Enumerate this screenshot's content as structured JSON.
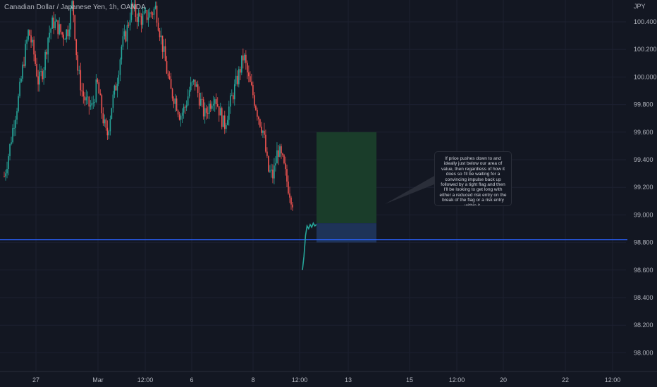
{
  "header": {
    "title": "Canadian Dollar / Japanese Yen, 1h, OANDA"
  },
  "y_axis_unit": "JPY",
  "annotation": {
    "text": "If price pushes down to and ideally just below our area of value, then regardless of how it does so I'll be waiting for a convincing impulse back up followed by a tight flag and then I'll be looking to get long with either a reduced risk entry on the break of the flag or a risk entry within it."
  },
  "colors": {
    "background": "#131722",
    "up": "#26a69a",
    "down": "#ef5350",
    "level_line": "#2962ff",
    "target_zone": "#1a3d2a",
    "stop_zone": "#1e3358"
  },
  "chart_data": {
    "type": "candlestick",
    "y_ticks": [
      "100.400",
      "100.200",
      "100.000",
      "99.800",
      "99.600",
      "99.400",
      "99.200",
      "99.000",
      "98.800",
      "98.600",
      "98.400",
      "98.200",
      "98.000"
    ],
    "ylim": [
      97.9,
      100.55
    ],
    "x_ticks": [
      "27",
      "Mar",
      "12:00",
      "6",
      "8",
      "12:00",
      "13",
      "15",
      "12:00",
      "20",
      "22",
      "12:00"
    ],
    "key_level": 98.82,
    "position": {
      "type": "long",
      "entry": 98.94,
      "stop_loss": 98.8,
      "target": 99.6
    },
    "price_path": [
      99.28,
      99.46,
      99.68,
      99.86,
      100.12,
      100.34,
      100.18,
      99.96,
      100.06,
      100.3,
      100.4,
      100.36,
      100.3,
      100.34,
      100.55,
      100.06,
      99.88,
      99.8,
      99.78,
      99.96,
      99.74,
      99.56,
      99.8,
      99.96,
      100.22,
      100.32,
      100.5,
      100.45,
      100.42,
      100.44,
      100.46,
      100.5,
      100.3,
      100.1,
      99.9,
      99.84,
      99.72,
      99.78,
      99.92,
      99.96,
      99.84,
      99.72,
      99.8,
      99.88,
      99.76,
      99.64,
      99.78,
      99.9,
      100.02,
      100.16,
      99.98,
      99.86,
      99.72,
      99.6,
      99.32,
      99.28,
      99.48,
      99.38,
      99.22,
      99.1
    ],
    "recent_path": [
      98.6,
      98.7,
      98.85,
      98.92,
      98.9,
      98.93,
      98.91,
      98.94,
      98.92,
      98.93
    ]
  }
}
